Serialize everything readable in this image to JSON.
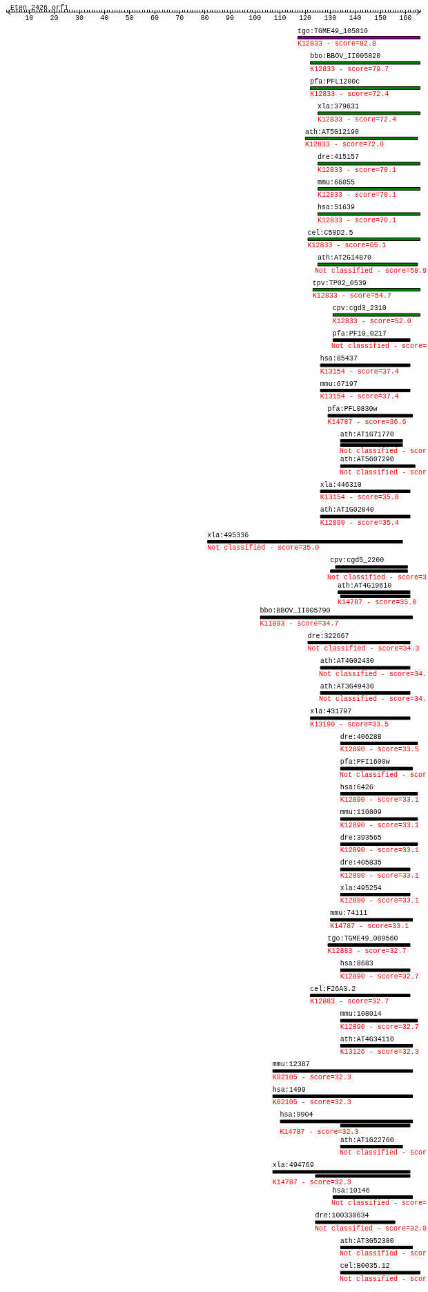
{
  "chart_data": {
    "type": "bar",
    "orientation": "horizontal",
    "title": "Eten_2426_orf1",
    "categories": [
      "tgo:TGME49_105010",
      "bbo:BBOV_II005820",
      "pfa:PFL1200c",
      "xla:379631",
      "ath:AT5G12190",
      "dre:415157",
      "mmu:66055",
      "hsa:51639",
      "cel:C50D2.5",
      "ath:AT2G14870",
      "tpv:TP02_0539",
      "cpv:cgd3_2310",
      "pfa:PF10_0217",
      "hsa:85437",
      "mmu:67197",
      "pfa:PFL0830w",
      "ath:AT1G71770",
      "ath:AT5G07290",
      "xla:446310",
      "ath:AT1G02840",
      "xla:495336",
      "cpv:cgd5_2200",
      "ath:AT4G19610",
      "bbo:BBOV_II005790",
      "dre:322667",
      "ath:AT4G02430",
      "ath:AT3G49430",
      "xla:431797",
      "dre:406288",
      "pfa:PFI1600w",
      "hsa:6426",
      "mmu:110809",
      "dre:393565",
      "dre:405835",
      "xla:495254",
      "mmu:74111",
      "tgo:TGME49_089560",
      "hsa:8683",
      "cel:F26A3.2",
      "mmu:108014",
      "ath:AT4G34110",
      "mmu:12387",
      "hsa:1499",
      "hsa:9904",
      "ath:AT1G22760",
      "xla:494769",
      "hsa:10146",
      "dre:100330634",
      "ath:AT3G52380",
      "cel:B0035.12"
    ],
    "xlim": [
      1,
      166
    ],
    "xticks": [
      {
        "value": 1,
        "label": null
      },
      {
        "value": 2,
        "label": null
      },
      {
        "value": 3,
        "label": null
      },
      {
        "value": 4,
        "label": null
      },
      {
        "value": 5,
        "label": null
      },
      {
        "value": 6,
        "label": null
      },
      {
        "value": 7,
        "label": null
      },
      {
        "value": 8,
        "label": null
      },
      {
        "value": 9,
        "label": null
      },
      10,
      {
        "value": 11,
        "label": null
      },
      {
        "value": 12,
        "label": null
      },
      {
        "value": 13,
        "label": null
      },
      {
        "value": 14,
        "label": null
      },
      {
        "value": 15,
        "label": null
      },
      {
        "value": 16,
        "label": null
      },
      {
        "value": 17,
        "label": null
      },
      {
        "value": 18,
        "label": null
      },
      {
        "value": 19,
        "label": null
      },
      20,
      {
        "value": 21,
        "label": null
      },
      {
        "value": 22,
        "label": null
      },
      {
        "value": 23,
        "label": null
      },
      {
        "value": 24,
        "label": null
      },
      {
        "value": 25,
        "label": null
      },
      {
        "value": 26,
        "label": null
      },
      {
        "value": 27,
        "label": null
      },
      {
        "value": 28,
        "label": null
      },
      {
        "value": 29,
        "label": null
      },
      30,
      {
        "value": 31,
        "label": null
      },
      {
        "value": 32,
        "label": null
      },
      {
        "value": 33,
        "label": null
      },
      {
        "value": 34,
        "label": null
      },
      {
        "value": 35,
        "label": null
      },
      {
        "value": 36,
        "label": null
      },
      {
        "value": 37,
        "label": null
      },
      {
        "value": 38,
        "label": null
      },
      {
        "value": 39,
        "label": null
      },
      40,
      {
        "value": 41,
        "label": null
      },
      {
        "value": 42,
        "label": null
      },
      {
        "value": 43,
        "label": null
      },
      {
        "value": 44,
        "label": null
      },
      {
        "value": 45,
        "label": null
      },
      {
        "value": 46,
        "label": null
      },
      {
        "value": 47,
        "label": null
      },
      {
        "value": 48,
        "label": null
      },
      {
        "value": 49,
        "label": null
      },
      50,
      {
        "value": 51,
        "label": null
      },
      {
        "value": 52,
        "label": null
      },
      {
        "value": 53,
        "label": null
      },
      {
        "value": 54,
        "label": null
      },
      {
        "value": 55,
        "label": null
      },
      {
        "value": 56,
        "label": null
      },
      {
        "value": 57,
        "label": null
      },
      {
        "value": 58,
        "label": null
      },
      {
        "value": 59,
        "label": null
      },
      60,
      {
        "value": 61,
        "label": null
      },
      {
        "value": 62,
        "label": null
      },
      {
        "value": 63,
        "label": null
      },
      {
        "value": 64,
        "label": null
      },
      {
        "value": 65,
        "label": null
      },
      {
        "value": 66,
        "label": null
      },
      {
        "value": 67,
        "label": null
      },
      {
        "value": 68,
        "label": null
      },
      {
        "value": 69,
        "label": null
      },
      70,
      {
        "value": 71,
        "label": null
      },
      {
        "value": 72,
        "label": null
      },
      {
        "value": 73,
        "label": null
      },
      {
        "value": 74,
        "label": null
      },
      {
        "value": 75,
        "label": null
      },
      {
        "value": 76,
        "label": null
      },
      {
        "value": 77,
        "label": null
      },
      {
        "value": 78,
        "label": null
      },
      {
        "value": 79,
        "label": null
      },
      80,
      {
        "value": 81,
        "label": null
      },
      {
        "value": 82,
        "label": null
      },
      {
        "value": 83,
        "label": null
      },
      {
        "value": 84,
        "label": null
      },
      {
        "value": 85,
        "label": null
      },
      {
        "value": 86,
        "label": null
      },
      {
        "value": 87,
        "label": null
      },
      {
        "value": 88,
        "label": null
      },
      {
        "value": 89,
        "label": null
      },
      90,
      {
        "value": 91,
        "label": null
      },
      {
        "value": 92,
        "label": null
      },
      {
        "value": 93,
        "label": null
      },
      {
        "value": 94,
        "label": null
      },
      {
        "value": 95,
        "label": null
      },
      {
        "value": 96,
        "label": null
      },
      {
        "value": 97,
        "label": null
      },
      {
        "value": 98,
        "label": null
      },
      {
        "value": 99,
        "label": null
      },
      100,
      {
        "value": 101,
        "label": null
      },
      {
        "value": 102,
        "label": null
      },
      {
        "value": 103,
        "label": null
      },
      {
        "value": 104,
        "label": null
      },
      {
        "value": 105,
        "label": null
      },
      {
        "value": 106,
        "label": null
      },
      {
        "value": 107,
        "label": null
      },
      {
        "value": 108,
        "label": null
      },
      {
        "value": 109,
        "label": null
      },
      110,
      {
        "value": 111,
        "label": null
      },
      {
        "value": 112,
        "label": null
      },
      {
        "value": 113,
        "label": null
      },
      {
        "value": 114,
        "label": null
      },
      {
        "value": 115,
        "label": null
      },
      {
        "value": 116,
        "label": null
      },
      {
        "value": 117,
        "label": null
      },
      {
        "value": 118,
        "label": null
      },
      {
        "value": 119,
        "label": null
      },
      120,
      {
        "value": 121,
        "label": null
      },
      {
        "value": 122,
        "label": null
      },
      {
        "value": 123,
        "label": null
      },
      {
        "value": 124,
        "label": null
      },
      {
        "value": 125,
        "label": null
      },
      {
        "value": 126,
        "label": null
      },
      {
        "value": 127,
        "label": null
      },
      {
        "value": 128,
        "label": null
      },
      {
        "value": 129,
        "label": null
      },
      130,
      {
        "value": 131,
        "label": null
      },
      {
        "value": 132,
        "label": null
      },
      {
        "value": 133,
        "label": null
      },
      {
        "value": 134,
        "label": null
      },
      {
        "value": 135,
        "label": null
      },
      {
        "value": 136,
        "label": null
      },
      {
        "value": 137,
        "label": null
      },
      {
        "value": 138,
        "label": null
      },
      {
        "value": 139,
        "label": null
      },
      140,
      {
        "value": 141,
        "label": null
      },
      {
        "value": 142,
        "label": null
      },
      {
        "value": 143,
        "label": null
      },
      {
        "value": 144,
        "label": null
      },
      {
        "value": 145,
        "label": null
      },
      {
        "value": 146,
        "label": null
      },
      {
        "value": 147,
        "label": null
      },
      {
        "value": 148,
        "label": null
      },
      {
        "value": 149,
        "label": null
      },
      150,
      {
        "value": 151,
        "label": null
      },
      {
        "value": 152,
        "label": null
      },
      {
        "value": 153,
        "label": null
      },
      {
        "value": 154,
        "label": null
      },
      {
        "value": 155,
        "label": null
      },
      {
        "value": 156,
        "label": null
      },
      {
        "value": 157,
        "label": null
      },
      {
        "value": 158,
        "label": null
      },
      {
        "value": 159,
        "label": null
      },
      160,
      {
        "value": 161,
        "label": null
      },
      {
        "value": 162,
        "label": null
      },
      {
        "value": 163,
        "label": null
      },
      {
        "value": 164,
        "label": null
      },
      {
        "value": 165,
        "label": null
      },
      {
        "value": 166,
        "label": null
      }
    ],
    "series": [
      {
        "colors": [
          "#800080",
          "#008000",
          "#008000",
          "#008000",
          "#008000",
          "#008000",
          "#008000",
          "#008000",
          "#008000",
          "#008000",
          "#008000",
          "#008000",
          "#000000",
          "#000000",
          "#000000",
          "#000000",
          "#000000",
          "#000000",
          "#000000",
          "#000000",
          "#000000",
          "#000000",
          "#000000",
          "#000000",
          "#000000",
          "#000000",
          "#000000",
          "#000000",
          "#000000",
          "#000000",
          "#000000",
          "#000000",
          "#000000",
          "#000000",
          "#000000",
          "#000000",
          "#000000",
          "#000000",
          "#000000",
          "#000000",
          "#000000",
          "#000000",
          "#000000",
          "#000000",
          "#000000",
          "#000000",
          "#000000",
          "#000000",
          "#000000",
          "#000000"
        ],
        "base": [
          117,
          122,
          122,
          125,
          120,
          125,
          125,
          125,
          121,
          125,
          123,
          131,
          131,
          126,
          126,
          129,
          134,
          134,
          126,
          126,
          81,
          132,
          133,
          102,
          121,
          126,
          126,
          122,
          134,
          134,
          134,
          134,
          134,
          134,
          134,
          130,
          129,
          134,
          122,
          134,
          134,
          107,
          107,
          110,
          134,
          107,
          131,
          124,
          134,
          134
        ],
        "values": [
          49,
          44,
          44,
          41,
          45,
          41,
          41,
          41,
          45,
          40,
          43,
          35,
          31,
          36,
          36,
          34,
          25,
          30,
          36,
          36,
          78,
          29,
          29,
          61,
          41,
          36,
          36,
          40,
          31,
          29,
          31,
          31,
          31,
          28,
          28,
          33,
          33,
          28,
          40,
          31,
          29,
          56,
          56,
          53,
          25,
          55,
          32,
          32,
          29,
          32
        ]
      },
      {
        "color": "#000000",
        "base": [
          null,
          null,
          null,
          null,
          null,
          null,
          null,
          null,
          null,
          null,
          null,
          null,
          null,
          null,
          null,
          null,
          134,
          null,
          null,
          null,
          null,
          130,
          134,
          null,
          null,
          null,
          null,
          null,
          null,
          null,
          null,
          null,
          null,
          null,
          null,
          null,
          null,
          null,
          null,
          null,
          null,
          null,
          null,
          134,
          null,
          124,
          null,
          null,
          null,
          null
        ],
        "values": [
          null,
          null,
          null,
          null,
          null,
          null,
          null,
          null,
          null,
          null,
          null,
          null,
          null,
          null,
          null,
          null,
          25,
          null,
          null,
          null,
          null,
          31,
          28,
          null,
          null,
          null,
          null,
          null,
          null,
          null,
          null,
          null,
          null,
          null,
          null,
          null,
          null,
          null,
          null,
          null,
          null,
          null,
          null,
          28,
          null,
          38,
          null,
          null,
          null,
          null
        ]
      }
    ],
    "annotations": [
      "K12833 - score=82.8",
      "K12833 - score=79.7",
      "K12833 - score=72.4",
      "K12833 - score=72.4",
      "K12833 - score=72.0",
      "K12833 - score=70.1",
      "K12833 - score=70.1",
      "K12833 - score=70.1",
      "K12833 - score=65.1",
      "Not classified - score=58.9",
      "K12833 - score=54.7",
      "K12833 - score=52.0",
      "Not classified - score=",
      "K13154 - score=37.4",
      "K13154 - score=37.4",
      "K14787 - score=36.6",
      "Not classified - scor",
      "Not classified - scor",
      "K13154 - score=35.8",
      "K12890 - score=35.4",
      "Not classified - score=35.0",
      "Not classified - score=3",
      "K14787 - score=35.0",
      "K11093 - score=34.7",
      "Not classified - score=34.3",
      "Not classified - score=34.",
      "Not classified - score=34.",
      "K13190 - score=33.5",
      "K12890 - score=33.5",
      "Not classified - scor",
      "K12890 - score=33.1",
      "K12890 - score=33.1",
      "K12890 - score=33.1",
      "K12890 - score=33.1",
      "K12890 - score=33.1",
      "K14787 - score=33.1",
      "K12883 - score=32.7",
      "K12890 - score=32.7",
      "K12883 - score=32.7",
      "K12890 - score=32.7",
      "K13126 - score=32.3",
      "K02105 - score=32.3",
      "K02105 - score=32.3",
      "K14787 - score=32.3",
      "Not classified - scor",
      "K14787 - score=32.3",
      "Not classified - score=",
      "Not classified - score=32.0",
      "Not classified - scor",
      "Not classified - scor"
    ]
  }
}
